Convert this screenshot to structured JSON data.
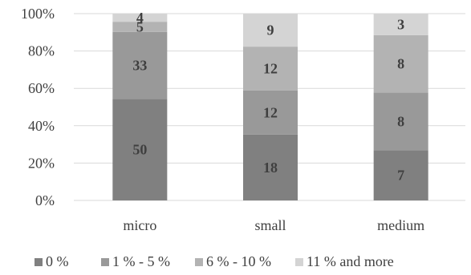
{
  "chart_data": {
    "type": "bar",
    "stacked": "percent",
    "categories": [
      "micro",
      "small",
      "medium"
    ],
    "series": [
      {
        "name": "0 %",
        "color": "#808080",
        "values": [
          50,
          18,
          7
        ]
      },
      {
        "name": "1 % - 5 %",
        "color": "#999999",
        "values": [
          33,
          12,
          8
        ]
      },
      {
        "name": "6 % - 10 %",
        "color": "#b3b3b3",
        "values": [
          5,
          12,
          8
        ]
      },
      {
        "name": "11 % and more",
        "color": "#d4d4d4",
        "values": [
          4,
          9,
          3
        ]
      }
    ],
    "yticks": [
      "0%",
      "20%",
      "40%",
      "60%",
      "80%",
      "100%"
    ],
    "ylim": [
      0,
      100
    ],
    "grid": true,
    "legend": "bottom"
  }
}
